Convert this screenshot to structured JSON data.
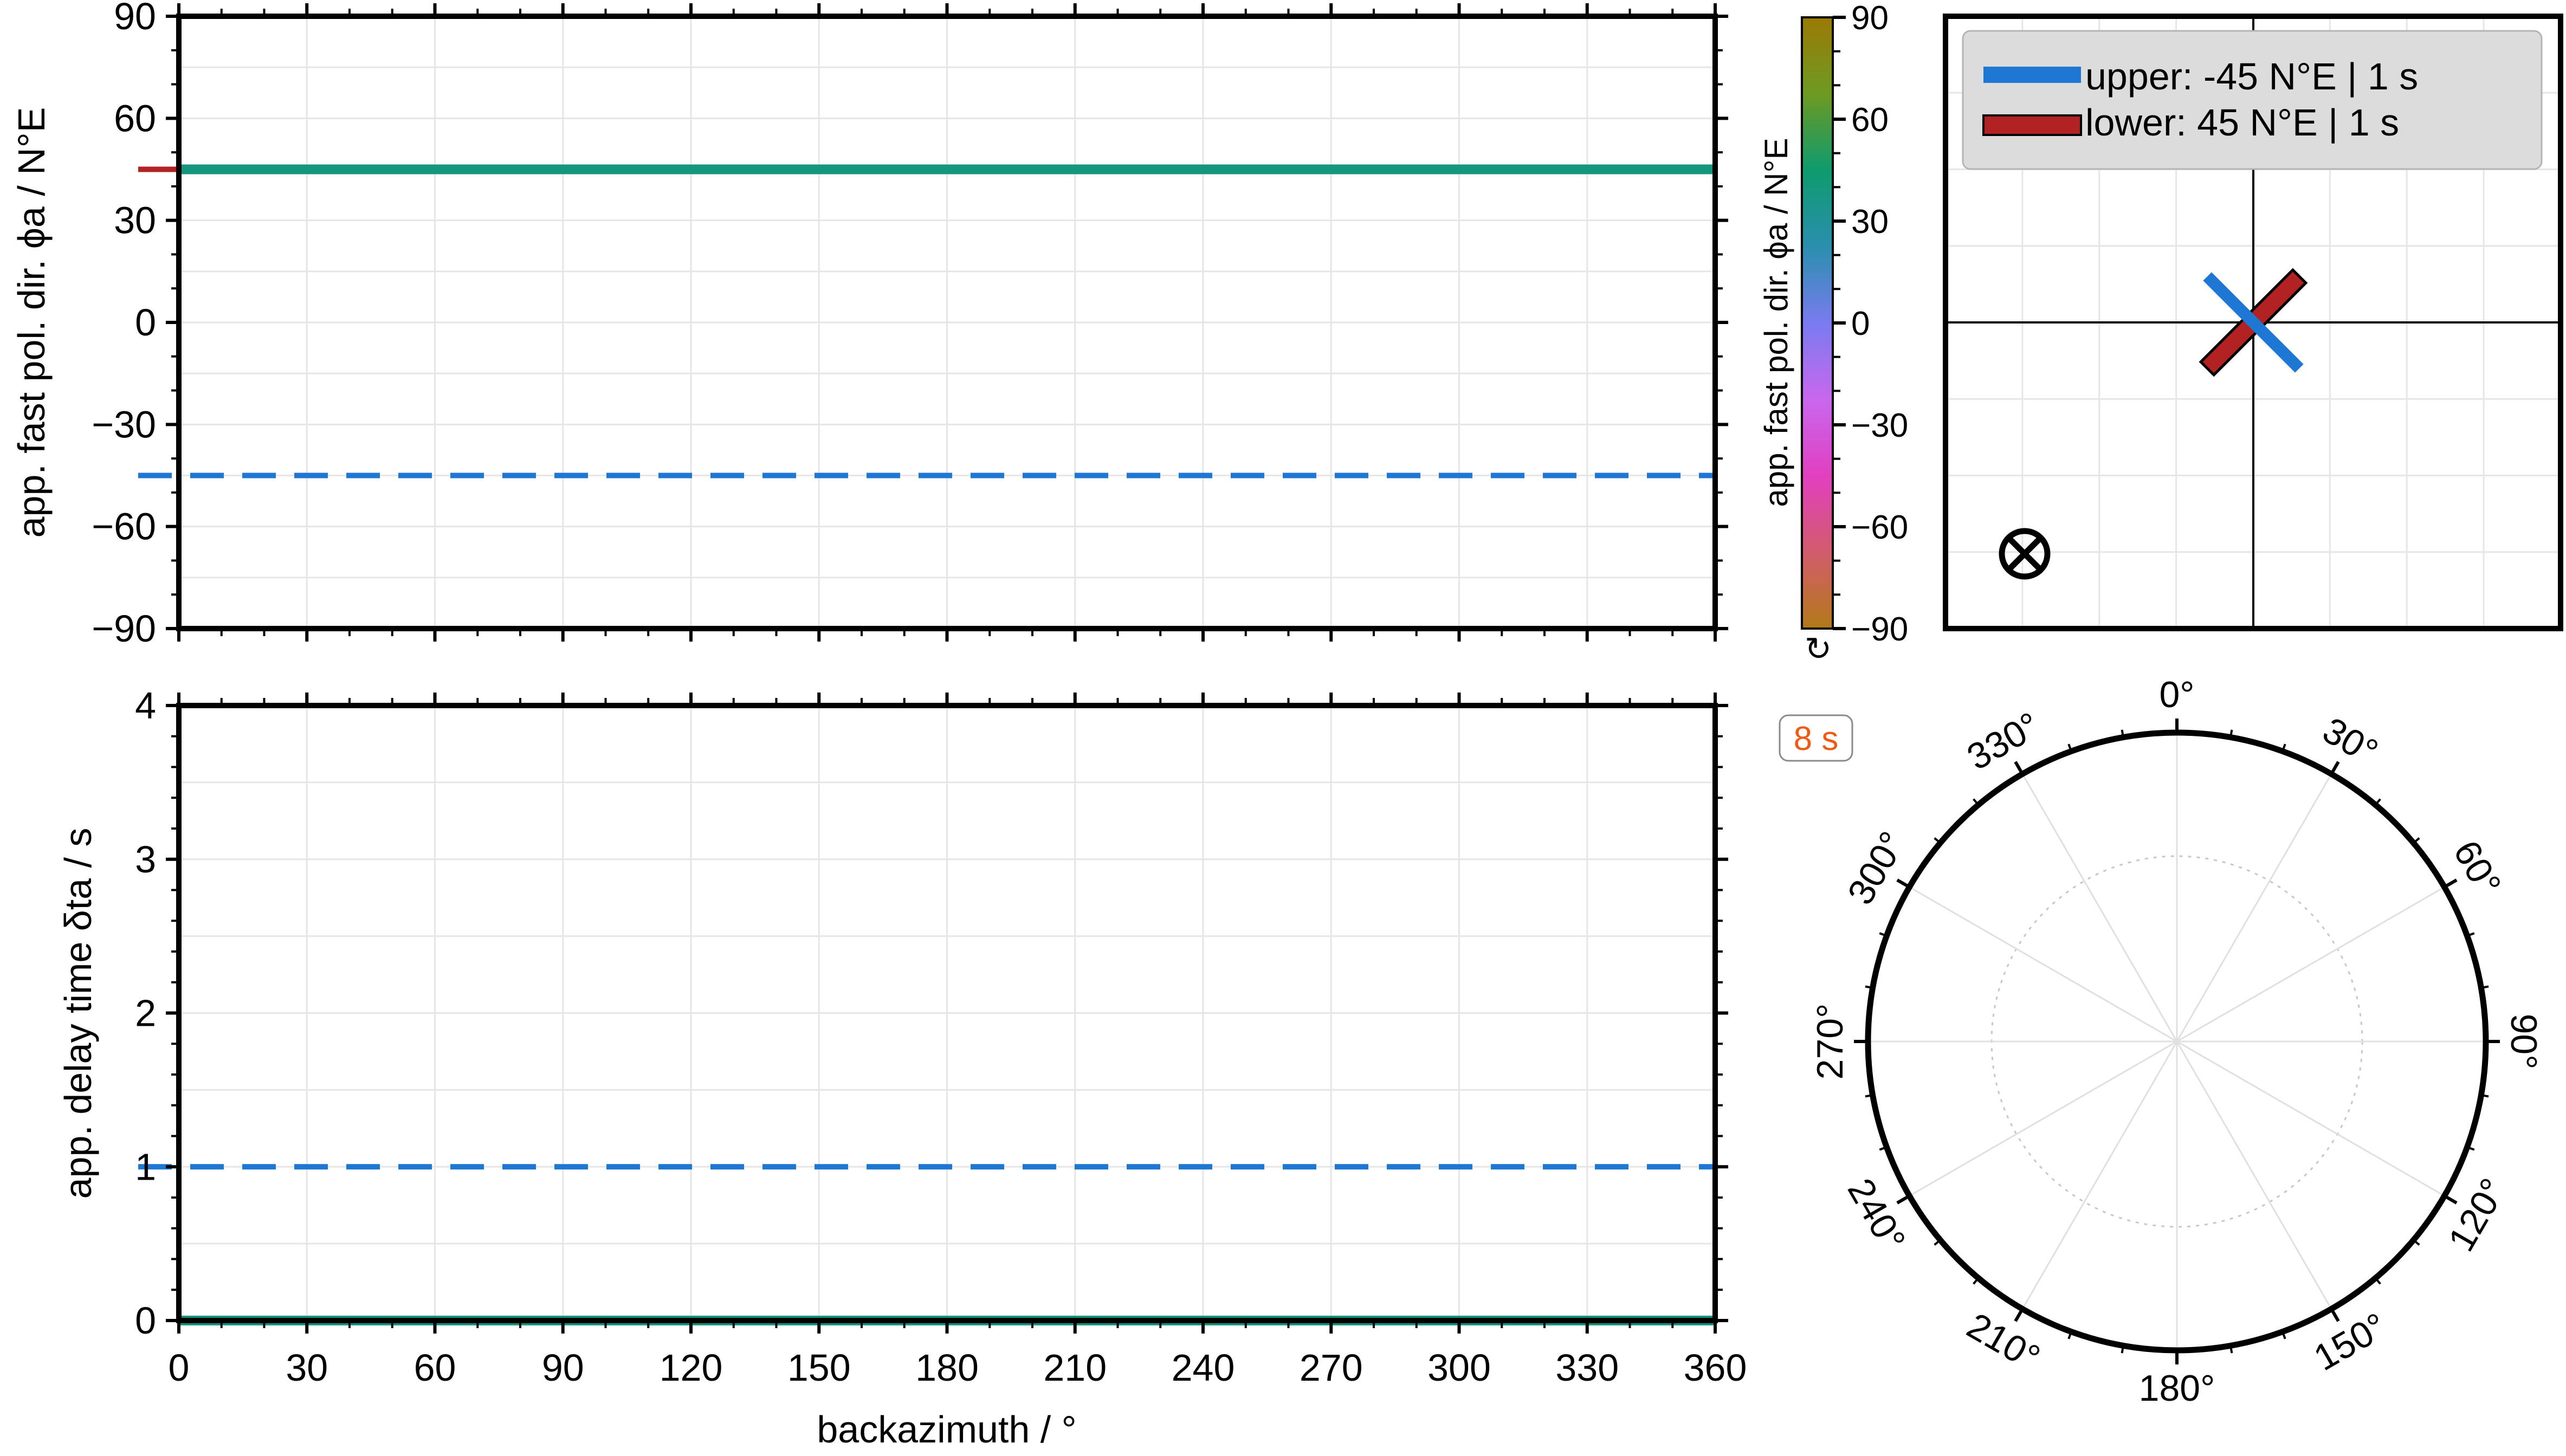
{
  "colors": {
    "upper": "#1f77d4",
    "lower": "#b22222",
    "phi_measured": "#14967e",
    "delay_measured": "#14967e",
    "period_badge": "#f05a14",
    "cbar_stops": [
      "#9b7a05",
      "#6e9a22",
      "#0e9b6e",
      "#2a8fae",
      "#7a7bf0",
      "#c867ee",
      "#e23fc0",
      "#d25c6c",
      "#b37a18"
    ]
  },
  "chart_data": [
    {
      "type": "line",
      "id": "phi-vs-baz",
      "xlabel": "",
      "ylabel": "app. fast pol. dir. ϕa / N°E",
      "xlim": [
        0,
        360
      ],
      "ylim": [
        -90,
        90
      ],
      "yticks": [
        "90",
        "60",
        "30",
        "0",
        "−30",
        "−60",
        "−90"
      ],
      "ytick_values": [
        90,
        60,
        30,
        0,
        -30,
        -60,
        -90
      ],
      "grid": true,
      "series": [
        {
          "role": "upper",
          "style": "dashed",
          "x": [
            0,
            360
          ],
          "y": [
            -45,
            -45
          ]
        },
        {
          "role": "measured",
          "style": "solid",
          "x": [
            0,
            360
          ],
          "y": [
            45,
            45
          ]
        }
      ],
      "axis_marker": {
        "role": "lower",
        "y": 45
      }
    },
    {
      "type": "line",
      "id": "dt-vs-baz",
      "xlabel": "backazimuth / °",
      "ylabel": "app. delay time δta / s",
      "xlim": [
        0,
        360
      ],
      "ylim": [
        0,
        4
      ],
      "xticks": [
        "0",
        "30",
        "60",
        "90",
        "120",
        "150",
        "180",
        "210",
        "240",
        "270",
        "300",
        "330",
        "360"
      ],
      "xtick_values": [
        0,
        30,
        60,
        90,
        120,
        150,
        180,
        210,
        240,
        270,
        300,
        330,
        360
      ],
      "yticks": [
        "4",
        "3",
        "2",
        "1",
        "0"
      ],
      "ytick_values": [
        4,
        3,
        2,
        1,
        0
      ],
      "grid": true,
      "series": [
        {
          "role": "upper",
          "style": "dashed",
          "x": [
            0,
            360
          ],
          "y": [
            1,
            1
          ]
        },
        {
          "role": "measured",
          "style": "solid",
          "x": [
            0,
            360
          ],
          "y": [
            0,
            0
          ]
        }
      ]
    },
    {
      "type": "colorbar",
      "id": "phi-colorbar",
      "label": "app. fast pol. dir. ϕa / N°E",
      "range": [
        -90,
        90
      ],
      "ticks": [
        "90",
        "60",
        "30",
        "0",
        "−30",
        "−60",
        "−90"
      ],
      "tick_values": [
        90,
        60,
        30,
        0,
        -30,
        -60,
        -90
      ],
      "cyclic_symbol": "↻"
    },
    {
      "type": "scatter",
      "id": "model-sketch",
      "grid": true,
      "legend": {
        "placement": "top-left",
        "entries": [
          {
            "role": "upper",
            "label": "upper: -45 N°E | 1 s"
          },
          {
            "role": "lower",
            "label": "lower: 45 N°E | 1 s"
          }
        ]
      },
      "layers": [
        {
          "role": "lower",
          "phi": 45,
          "dt": 1
        },
        {
          "role": "upper",
          "phi": -45,
          "dt": 1
        }
      ],
      "symbol": "⊗"
    },
    {
      "type": "polar",
      "id": "baz-polar",
      "badge": "8 s",
      "theta_labels": [
        "0°",
        "30°",
        "60°",
        "90°",
        "120°",
        "150°",
        "180°",
        "210°",
        "240°",
        "270°",
        "300°",
        "330°"
      ],
      "theta_values": [
        0,
        30,
        60,
        90,
        120,
        150,
        180,
        210,
        240,
        270,
        300,
        330
      ]
    }
  ]
}
